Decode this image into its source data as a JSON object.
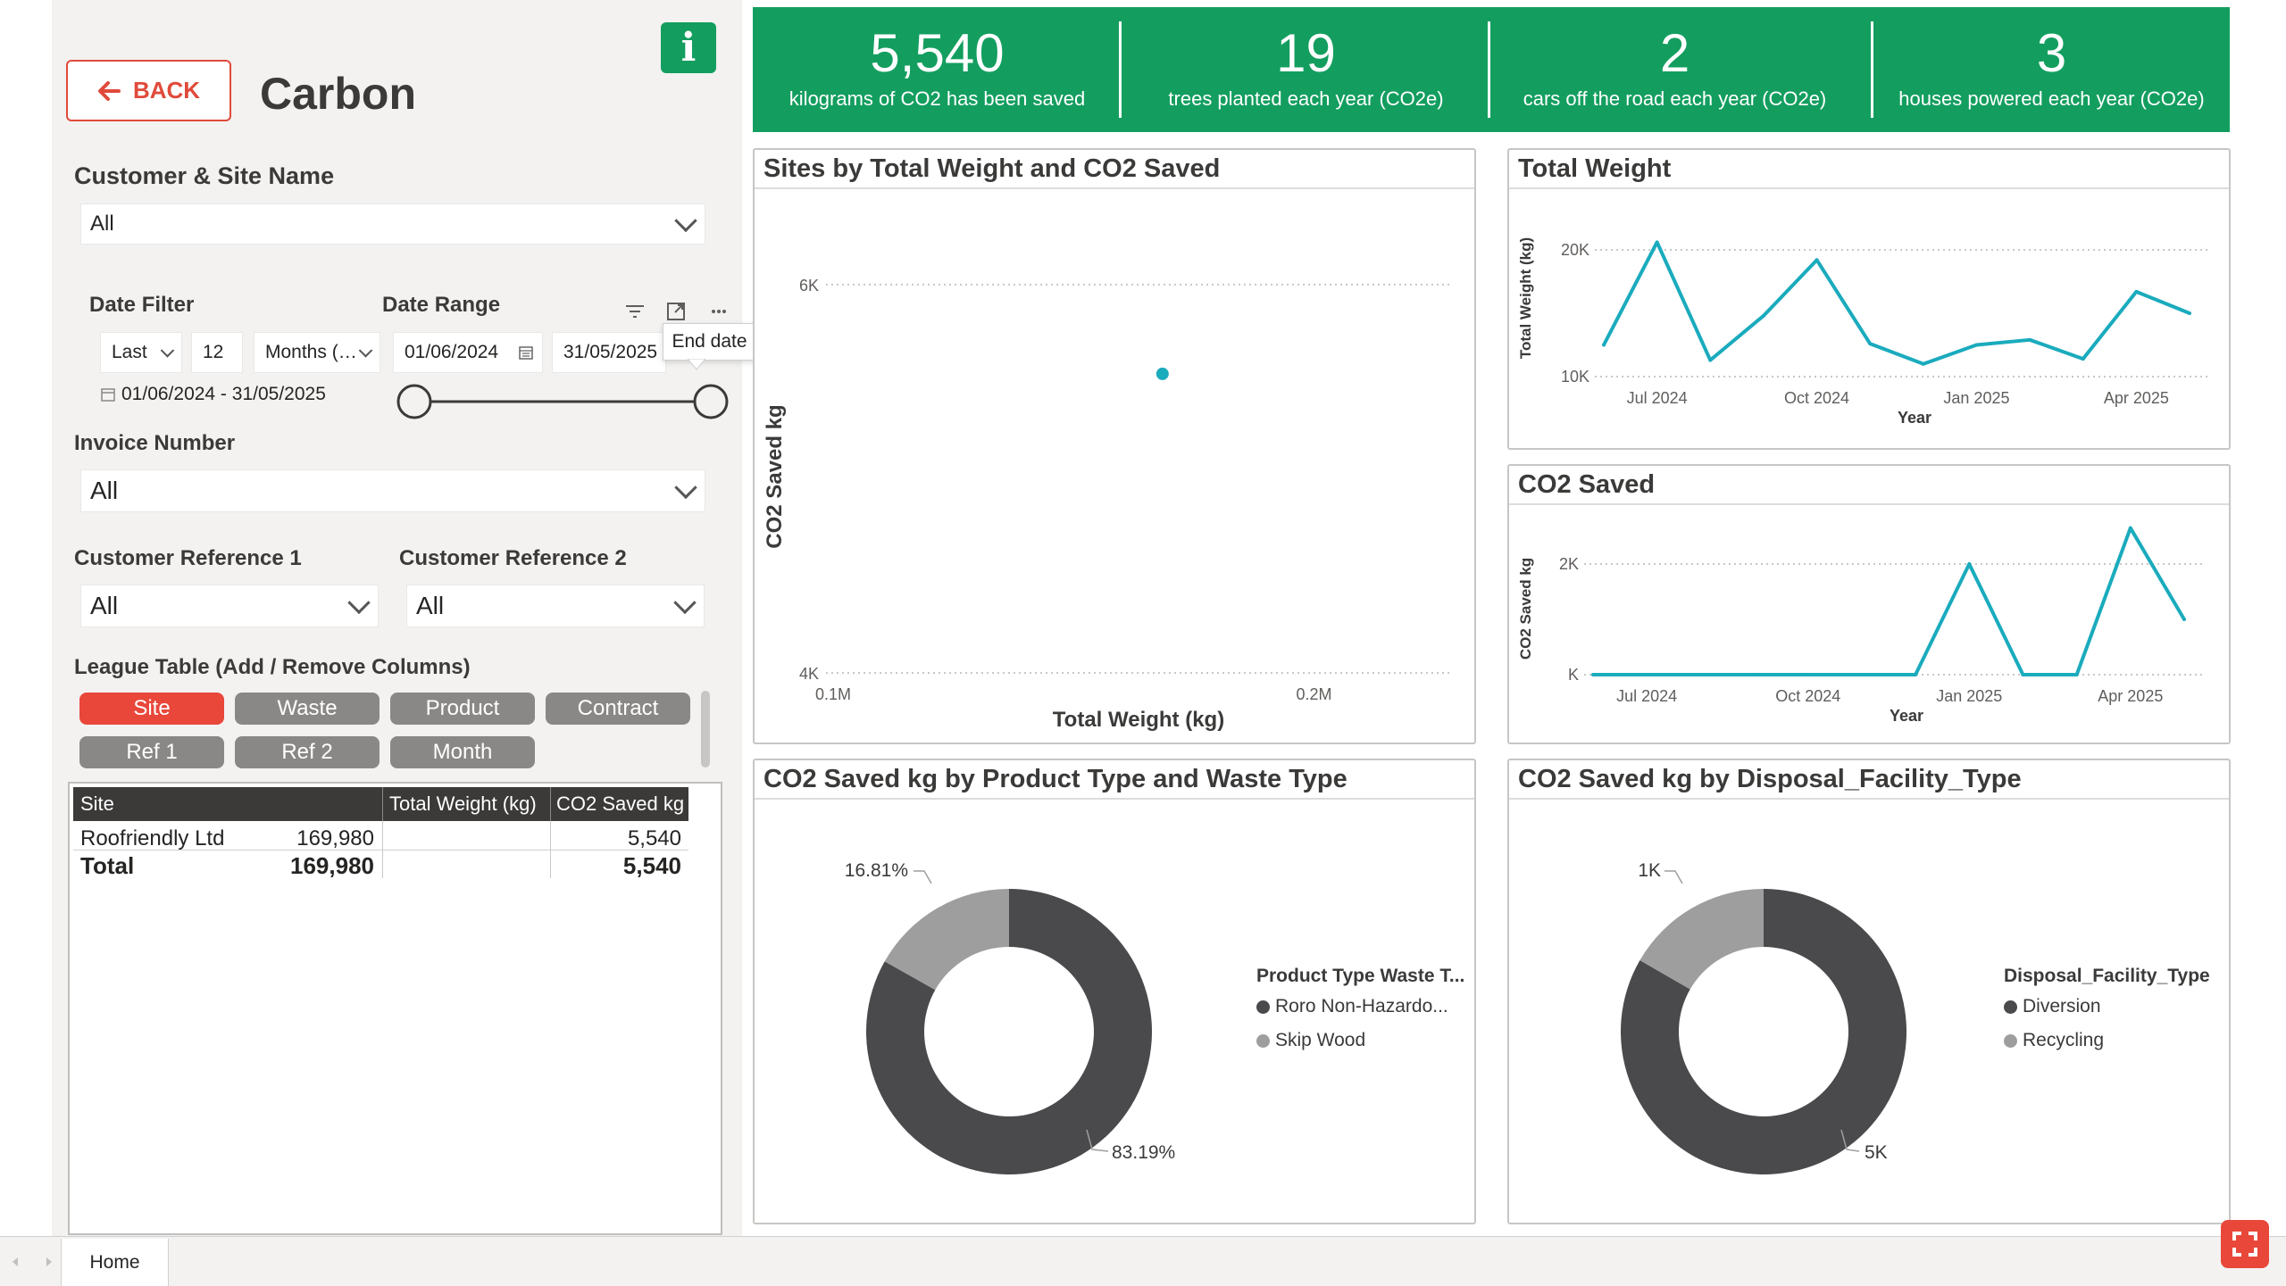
{
  "header": {
    "back_label": "BACK",
    "title": "Carbon",
    "info_label": "i"
  },
  "filters": {
    "customer_site_label": "Customer & Site Name",
    "customer_site_value": "All",
    "date_filter_label": "Date Filter",
    "date_filter_mode": "Last",
    "date_filter_count": "12",
    "date_filter_unit": "Months (…",
    "date_filter_summary": "01/06/2024 - 31/05/2025",
    "date_range_label": "Date Range",
    "date_range_start": "01/06/2024",
    "date_range_end": "31/05/2025",
    "date_range_slider_start": 0,
    "date_range_slider_end": 1,
    "tooltip_end_date": "End date",
    "invoice_label": "Invoice Number",
    "invoice_value": "All",
    "customer_ref1_label": "Customer Reference 1",
    "customer_ref1_value": "All",
    "customer_ref2_label": "Customer Reference 2",
    "customer_ref2_value": "All"
  },
  "league": {
    "label": "League Table (Add / Remove Columns)",
    "pills": [
      {
        "label": "Site",
        "active": true
      },
      {
        "label": "Waste",
        "active": false
      },
      {
        "label": "Product",
        "active": false
      },
      {
        "label": "Contract",
        "active": false
      },
      {
        "label": "Ref 1",
        "active": false
      },
      {
        "label": "Ref 2",
        "active": false
      },
      {
        "label": "Month",
        "active": false
      }
    ],
    "columns": [
      "Site",
      "Total Weight (kg)",
      "CO2 Saved kg"
    ],
    "rows": [
      {
        "site": "Roofriendly Ltd",
        "weight": "169,980",
        "co2": "5,540"
      }
    ],
    "total": {
      "site": "Total",
      "weight": "169,980",
      "co2": "5,540"
    }
  },
  "kpis": [
    {
      "value": "5,540",
      "caption": "kilograms of CO2 has been saved"
    },
    {
      "value": "19",
      "caption": "trees planted each year (CO2e)"
    },
    {
      "value": "2",
      "caption": "cars off the road each year (CO2e)"
    },
    {
      "value": "3",
      "caption": "houses powered each year (CO2e)"
    }
  ],
  "colors": {
    "kpi_green": "#139e5f",
    "accent_red": "#e8473a",
    "line_teal": "#1aabbd",
    "donut_dark": "#4a4a4d",
    "donut_light": "#9e9e9e"
  },
  "tabs": {
    "home": "Home"
  },
  "chart_data": [
    {
      "type": "scatter",
      "title": "Sites by Total Weight and CO2 Saved",
      "xlabel": "Total Weight (kg)",
      "ylabel": "CO2 Saved kg",
      "x_ticks": [
        "0.1M",
        "0.2M"
      ],
      "y_ticks": [
        "4K",
        "6K"
      ],
      "xlim": [
        100000,
        230000
      ],
      "ylim": [
        4000,
        6000
      ],
      "points": [
        {
          "x": 169980,
          "y": 5540
        }
      ]
    },
    {
      "type": "line",
      "title": "Total Weight",
      "xlabel": "Year",
      "ylabel": "Total Weight (kg)",
      "x_ticks": [
        "Jul 2024",
        "Oct 2024",
        "Jan 2025",
        "Apr 2025"
      ],
      "y_ticks": [
        "10K",
        "20K"
      ],
      "ylim": [
        10000,
        20000
      ],
      "x": [
        "Jun 2024",
        "Jul 2024",
        "Aug 2024",
        "Sep 2024",
        "Oct 2024",
        "Nov 2024",
        "Dec 2024",
        "Jan 2025",
        "Feb 2025",
        "Mar 2025",
        "Apr 2025",
        "May 2025"
      ],
      "values": [
        12500,
        20600,
        11300,
        14800,
        19200,
        12600,
        11000,
        12500,
        12900,
        11400,
        16700,
        15000
      ]
    },
    {
      "type": "line",
      "title": "CO2 Saved",
      "xlabel": "Year",
      "ylabel": "CO2 Saved kg",
      "x_ticks": [
        "Jul 2024",
        "Oct 2024",
        "Jan 2025",
        "Apr 2025"
      ],
      "y_ticks": [
        "K",
        "2K"
      ],
      "ylim": [
        0,
        2000
      ],
      "x": [
        "Jun 2024",
        "Jul 2024",
        "Aug 2024",
        "Sep 2024",
        "Oct 2024",
        "Nov 2024",
        "Dec 2024",
        "Jan 2025",
        "Feb 2025",
        "Mar 2025",
        "Apr 2025",
        "May 2025"
      ],
      "values": [
        0,
        0,
        0,
        0,
        0,
        0,
        0,
        2000,
        0,
        0,
        2650,
        1000
      ]
    },
    {
      "type": "pie",
      "title": "CO2 Saved kg by Product Type and Waste Type",
      "legend_title": "Product Type Waste T...",
      "labels": [
        "Roro Non-Hazardo...",
        "Skip Wood"
      ],
      "values": [
        83.19,
        16.81
      ],
      "data_labels": [
        "83.19%",
        "16.81%"
      ]
    },
    {
      "type": "pie",
      "title": "CO2 Saved kg by Disposal_Facility_Type",
      "legend_title": "Disposal_Facility_Type",
      "labels": [
        "Diversion",
        "Recycling"
      ],
      "values": [
        5,
        1
      ],
      "data_labels": [
        "5K",
        "1K"
      ]
    }
  ]
}
